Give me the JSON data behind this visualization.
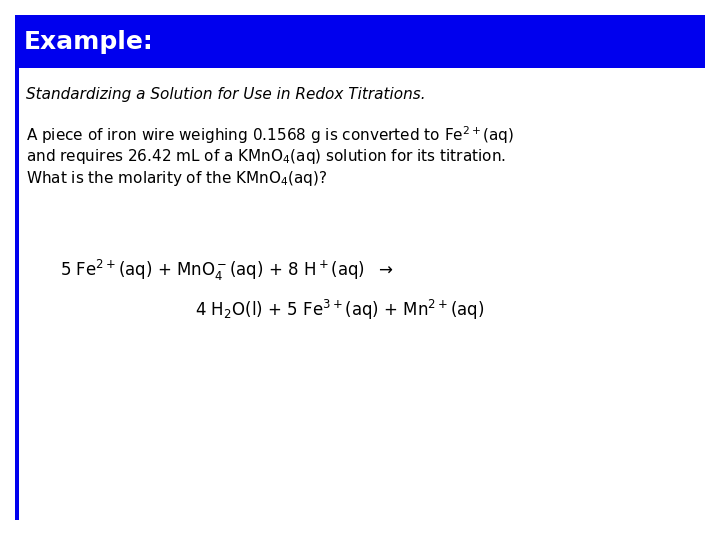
{
  "title": "Example:",
  "title_bg_color": "#0000EE",
  "title_text_color": "#FFFFFF",
  "subtitle": "Standardizing a Solution for Use in Redox Titrations.",
  "body_text_color": "#000000",
  "bg_color": "#FFFFFF",
  "left_bar_color": "#0000EE",
  "fig_width": 7.2,
  "fig_height": 5.4,
  "title_fontsize": 18,
  "body_fontsize": 11,
  "eq_fontsize": 12
}
